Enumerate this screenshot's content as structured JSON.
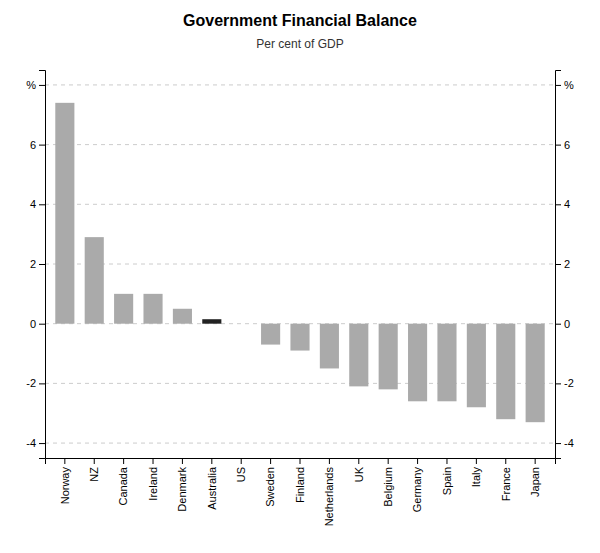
{
  "chart_data": {
    "type": "bar",
    "title": "Government Financial Balance",
    "subtitle": "Per cent of GDP",
    "categories": [
      "Norway",
      "NZ",
      "Canada",
      "Ireland",
      "Denmark",
      "Australia",
      "US",
      "Sweden",
      "Finland",
      "Netherlands",
      "UK",
      "Belgium",
      "Germany",
      "Spain",
      "Italy",
      "France",
      "Japan"
    ],
    "values": [
      7.4,
      2.9,
      1.0,
      1.0,
      0.5,
      0.15,
      0.0,
      -0.7,
      -0.9,
      -1.5,
      -2.1,
      -2.2,
      -2.6,
      -2.6,
      -2.8,
      -3.2,
      -3.3
    ],
    "colors": [
      "#aaaaaa",
      "#aaaaaa",
      "#aaaaaa",
      "#aaaaaa",
      "#aaaaaa",
      "#222222",
      "#aaaaaa",
      "#aaaaaa",
      "#aaaaaa",
      "#aaaaaa",
      "#aaaaaa",
      "#aaaaaa",
      "#aaaaaa",
      "#aaaaaa",
      "#aaaaaa",
      "#aaaaaa",
      "#aaaaaa"
    ],
    "ylim": [
      -4.5,
      8.5
    ],
    "yticks": [
      -4,
      -2,
      0,
      2,
      4,
      6,
      {
        "value": 8,
        "label": "%"
      }
    ],
    "y2lim": [
      -4.5,
      8.5
    ],
    "y2ticks": [
      -4,
      -2,
      0,
      2,
      4,
      6,
      {
        "value": 8,
        "label": "%"
      }
    ],
    "grid": true
  }
}
